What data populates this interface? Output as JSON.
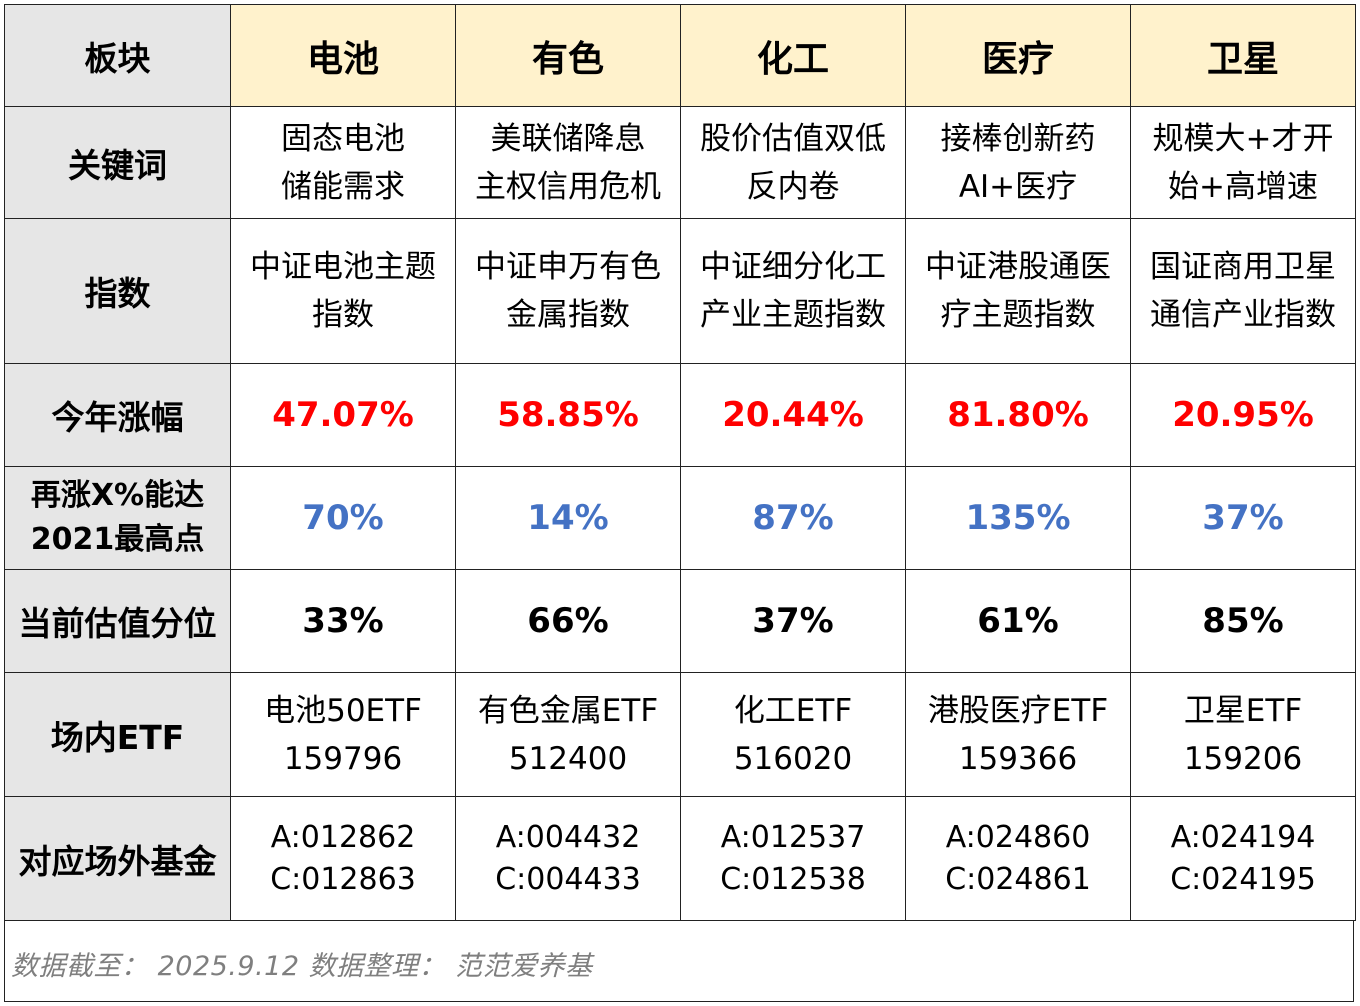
{
  "header_label": "板块",
  "sectors": [
    "电池",
    "有色",
    "化工",
    "医疗",
    "卫星"
  ],
  "rows": {
    "keywords": {
      "label": "关键词",
      "cells": [
        [
          "固态电池",
          "储能需求"
        ],
        [
          "美联储降息",
          "主权信用危机"
        ],
        [
          "股价估值双低",
          "反内卷"
        ],
        [
          "接棒创新药",
          "AI+医疗"
        ],
        [
          "规模大+才开",
          "始+高增速"
        ]
      ]
    },
    "index": {
      "label": "指数",
      "cells": [
        [
          "中证电池主题",
          "指数"
        ],
        [
          "中证申万有色",
          "金属指数"
        ],
        [
          "中证细分化工",
          "产业主题指数"
        ],
        [
          "中证港股通医",
          "疗主题指数"
        ],
        [
          "国证商用卫星",
          "通信产业指数"
        ]
      ]
    },
    "ytd_gain": {
      "label": "今年涨幅",
      "color": "#ff0000",
      "cells": [
        "47.07%",
        "58.85%",
        "20.44%",
        "81.80%",
        "20.95%"
      ]
    },
    "upside": {
      "label_lines": [
        "再涨X%能达",
        "2021最高点"
      ],
      "color": "#4472c4",
      "cells": [
        "70%",
        "14%",
        "87%",
        "135%",
        "37%"
      ]
    },
    "valuation": {
      "label": "当前估值分位",
      "cells": [
        "33%",
        "66%",
        "37%",
        "61%",
        "85%"
      ]
    },
    "etf": {
      "label": "场内ETF",
      "cells": [
        [
          "电池50ETF",
          "159796"
        ],
        [
          "有色金属ETF",
          "512400"
        ],
        [
          "化工ETF",
          "516020"
        ],
        [
          "港股医疗ETF",
          "159366"
        ],
        [
          "卫星ETF",
          "159206"
        ]
      ]
    },
    "otc_fund": {
      "label": "对应场外基金",
      "cells": [
        [
          "A:012862",
          "C:012863"
        ],
        [
          "A:004432",
          "C:004433"
        ],
        [
          "A:012537",
          "C:012538"
        ],
        [
          "A:024860",
          "C:024861"
        ],
        [
          "A:024194",
          "C:024195"
        ]
      ]
    }
  },
  "colors": {
    "header_bg": "#fff2cc",
    "label_bg": "#e6e6e6",
    "ytd_red": "#ff0000",
    "upside_blue": "#4472c4",
    "footer_gray": "#7f7f7f"
  },
  "footer": "数据截至： 2025.9.12  数据整理： 范范爱养基"
}
